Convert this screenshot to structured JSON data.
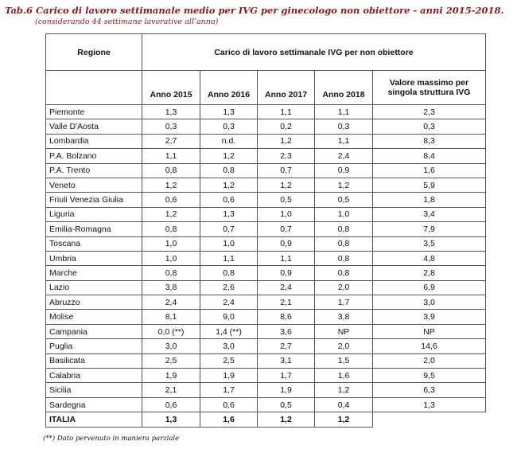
{
  "title": "Tab.6 Carico di lavoro settimanale medio per IVG per ginecologo non obiettore - anni 2015-2018.",
  "subtitle": "(considerando 44 settimane lavorative all’anno)",
  "header": {
    "region": "Regione",
    "group": "Carico di lavoro settimanale IVG per non obiettore",
    "years": [
      "Anno 2015",
      "Anno 2016",
      "Anno 2017",
      "Anno 2018"
    ],
    "max": "Valore massimo per singola struttura IVG"
  },
  "rows": [
    {
      "region": "Piemonte",
      "values": [
        "1,3",
        "1,3",
        "1,1",
        "1,1",
        "2,3"
      ]
    },
    {
      "region": "Valle D'Aosta",
      "values": [
        "0,3",
        "0,3",
        "0,2",
        "0,3",
        "0,3"
      ]
    },
    {
      "region": "Lombardia",
      "values": [
        "2,7",
        "n.d.",
        "1,2",
        "1,1",
        "8,3"
      ]
    },
    {
      "region": "P.A. Bolzano",
      "values": [
        "1,1",
        "1,2",
        "2,3",
        "2,4",
        "8,4"
      ]
    },
    {
      "region": "P.A. Trento",
      "values": [
        "0,8",
        "0,8",
        "0,7",
        "0,9",
        "1,6"
      ]
    },
    {
      "region": "Veneto",
      "values": [
        "1,2",
        "1,2",
        "1,2",
        "1,2",
        "5,9"
      ]
    },
    {
      "region": "Friuli Venezia Giulia",
      "values": [
        "0,6",
        "0,6",
        "0,5",
        "0,5",
        "1,8"
      ]
    },
    {
      "region": "Liguria",
      "values": [
        "1,2",
        "1,3",
        "1,0",
        "1,0",
        "3,4"
      ]
    },
    {
      "region": "Emilia-Romagna",
      "values": [
        "0,8",
        "0,7",
        "0,7",
        "0,8",
        "7,9"
      ]
    },
    {
      "region": "Toscana",
      "values": [
        "1,0",
        "1,0",
        "0,9",
        "0,8",
        "3,5"
      ]
    },
    {
      "region": "Umbria",
      "values": [
        "1,0",
        "1,1",
        "1,1",
        "0,8",
        "4,8"
      ]
    },
    {
      "region": "Marche",
      "values": [
        "0,8",
        "0,8",
        "0,9",
        "0,8",
        "2,8"
      ]
    },
    {
      "region": "Lazio",
      "values": [
        "3,8",
        "2,6",
        "2,4",
        "2,0",
        "6,9"
      ]
    },
    {
      "region": "Abruzzo",
      "values": [
        "2,4",
        "2,4",
        "2,1",
        "1,7",
        "3,0"
      ]
    },
    {
      "region": "Molise",
      "values": [
        "8,1",
        "9,0",
        "8,6",
        "3,8",
        "3,9"
      ]
    },
    {
      "region": "Campania",
      "values": [
        "0,0 (**)",
        "1,4 (**)",
        "3,6",
        "NP",
        "NP"
      ]
    },
    {
      "region": "Puglia",
      "values": [
        "3,0",
        "3,0",
        "2,7",
        "2,0",
        "14,6"
      ]
    },
    {
      "region": "Basilicata",
      "values": [
        "2,5",
        "2,5",
        "3,1",
        "1,5",
        "2,0"
      ]
    },
    {
      "region": "Calabria",
      "values": [
        "1,9",
        "1,9",
        "1,7",
        "1,6",
        "9,5"
      ]
    },
    {
      "region": "Sicilia",
      "values": [
        "2,1",
        "1,7",
        "1,9",
        "1,2",
        "6,3"
      ]
    },
    {
      "region": "Sardegna",
      "values": [
        "0,6",
        "0,6",
        "0,5",
        "0,4",
        "1,3"
      ]
    }
  ],
  "total": {
    "region": "ITALIA",
    "values": [
      "1,3",
      "1,6",
      "1,2",
      "1,2"
    ]
  },
  "note": "(**) Dato pervenuto in maniera parziale"
}
